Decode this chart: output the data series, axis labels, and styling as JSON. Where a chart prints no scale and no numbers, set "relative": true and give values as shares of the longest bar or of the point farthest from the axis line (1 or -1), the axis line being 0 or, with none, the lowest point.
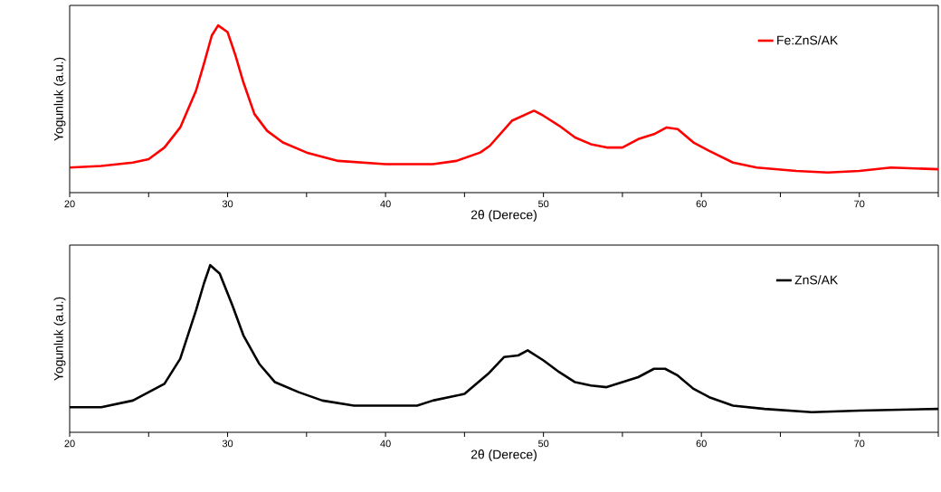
{
  "chart_data": [
    {
      "type": "line",
      "relative": true,
      "xlabel": "2θ (Derece)",
      "ylabel": "Yogunluk (a.u.)",
      "xlim": [
        20,
        75
      ],
      "xticks": [
        20,
        {
          "value": 25,
          "label": null
        },
        30,
        {
          "value": 35,
          "label": null
        },
        40,
        {
          "value": 45,
          "label": null
        },
        50,
        {
          "value": 55,
          "label": null
        },
        60,
        {
          "value": 65,
          "label": null
        },
        70,
        {
          "value": 75,
          "label": null
        }
      ],
      "legend": "top right",
      "series": [
        {
          "name": "Fe:ZnS/AK",
          "color": "#ff0000",
          "x": [
            20,
            22,
            24,
            25,
            26,
            27,
            28,
            28.5,
            29,
            29.4,
            30,
            30.5,
            31,
            31.7,
            32.5,
            33.5,
            35,
            37,
            40,
            43,
            44.5,
            46,
            46.6,
            48,
            49.4,
            50,
            51,
            52,
            53,
            54,
            55,
            56,
            57,
            57.8,
            58.5,
            59.5,
            60.5,
            62,
            63.5,
            66,
            68,
            70,
            72,
            75
          ],
          "values": [
            0.15,
            0.16,
            0.18,
            0.2,
            0.27,
            0.39,
            0.61,
            0.77,
            0.94,
            1.0,
            0.96,
            0.82,
            0.66,
            0.47,
            0.37,
            0.3,
            0.24,
            0.19,
            0.17,
            0.17,
            0.19,
            0.24,
            0.28,
            0.43,
            0.49,
            0.46,
            0.4,
            0.33,
            0.29,
            0.27,
            0.27,
            0.32,
            0.35,
            0.39,
            0.38,
            0.3,
            0.25,
            0.18,
            0.15,
            0.13,
            0.12,
            0.13,
            0.15,
            0.14
          ]
        }
      ]
    },
    {
      "type": "line",
      "relative": true,
      "xlabel": "2θ (Derece)",
      "ylabel": "Yogunluk (a.u.)",
      "xlim": [
        20,
        75
      ],
      "xticks": [
        20,
        {
          "value": 25,
          "label": null
        },
        30,
        {
          "value": 35,
          "label": null
        },
        40,
        {
          "value": 45,
          "label": null
        },
        50,
        {
          "value": 55,
          "label": null
        },
        60,
        {
          "value": 65,
          "label": null
        },
        70,
        {
          "value": 75,
          "label": null
        }
      ],
      "legend": "top right",
      "series": [
        {
          "name": "ZnS/AK",
          "color": "#000000",
          "x": [
            20,
            22,
            24,
            25,
            26,
            27,
            28,
            28.5,
            28.9,
            29.5,
            30.3,
            31,
            32,
            33,
            34.5,
            36,
            38,
            40,
            42,
            43,
            45,
            46.5,
            47.5,
            48.4,
            49,
            50,
            51,
            52,
            53,
            54,
            55,
            56,
            57,
            57.7,
            58.5,
            59.5,
            60.5,
            62,
            64,
            67,
            70,
            75
          ],
          "values": [
            0.15,
            0.15,
            0.19,
            0.24,
            0.29,
            0.44,
            0.73,
            0.89,
            1.0,
            0.95,
            0.76,
            0.58,
            0.41,
            0.3,
            0.24,
            0.19,
            0.16,
            0.16,
            0.16,
            0.19,
            0.23,
            0.35,
            0.45,
            0.46,
            0.49,
            0.43,
            0.36,
            0.3,
            0.28,
            0.27,
            0.3,
            0.33,
            0.38,
            0.38,
            0.34,
            0.26,
            0.21,
            0.16,
            0.14,
            0.12,
            0.13,
            0.14
          ]
        }
      ]
    }
  ]
}
